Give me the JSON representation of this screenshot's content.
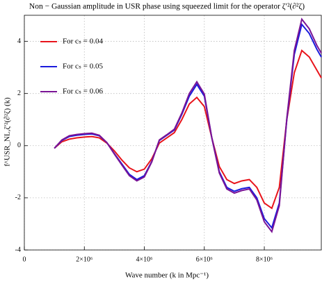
{
  "chart_data": {
    "type": "line",
    "title": "Non − Gaussian amplitude in USR phase using squeezed limit for the operator ζ′²(∂²ζ)",
    "xlabel": "Wave number (k in Mpc⁻¹)",
    "ylabel": "f^USR_NL,ζ′²(∂²ζ) (k)",
    "x": [
      1000000,
      1250000,
      1500000,
      1750000,
      2000000,
      2250000,
      2500000,
      2750000,
      3000000,
      3250000,
      3500000,
      3750000,
      4000000,
      4250000,
      4500000,
      4750000,
      5000000,
      5250000,
      5500000,
      5750000,
      6000000,
      6250000,
      6500000,
      6750000,
      7000000,
      7250000,
      7500000,
      7750000,
      8000000,
      8250000,
      8500000,
      8750000,
      9000000,
      9250000,
      9500000,
      9750000,
      9900000
    ],
    "series": [
      {
        "name": "For cₛ = 0.04",
        "color": "#e8141b",
        "values": [
          -0.1,
          0.15,
          0.25,
          0.3,
          0.33,
          0.35,
          0.3,
          0.1,
          -0.2,
          -0.55,
          -0.85,
          -1.0,
          -0.9,
          -0.5,
          0.1,
          0.3,
          0.5,
          1.0,
          1.6,
          1.85,
          1.5,
          0.3,
          -0.8,
          -1.3,
          -1.45,
          -1.35,
          -1.3,
          -1.6,
          -2.2,
          -2.4,
          -1.6,
          1.0,
          2.8,
          3.65,
          3.4,
          2.9,
          2.6
        ]
      },
      {
        "name": "For cₛ = 0.05",
        "color": "#1a1adc",
        "values": [
          -0.1,
          0.2,
          0.35,
          0.4,
          0.43,
          0.45,
          0.38,
          0.12,
          -0.3,
          -0.7,
          -1.1,
          -1.3,
          -1.15,
          -0.6,
          0.2,
          0.4,
          0.6,
          1.2,
          1.9,
          2.35,
          1.9,
          0.3,
          -1.0,
          -1.6,
          -1.75,
          -1.65,
          -1.6,
          -2.0,
          -2.8,
          -3.15,
          -2.2,
          1.0,
          3.5,
          4.65,
          4.3,
          3.7,
          3.4
        ]
      },
      {
        "name": "For cₛ = 0.06",
        "color": "#7a1496",
        "values": [
          -0.1,
          0.22,
          0.38,
          0.43,
          0.46,
          0.48,
          0.4,
          0.12,
          -0.32,
          -0.74,
          -1.15,
          -1.35,
          -1.2,
          -0.62,
          0.22,
          0.42,
          0.63,
          1.25,
          2.0,
          2.45,
          1.98,
          0.3,
          -1.05,
          -1.66,
          -1.82,
          -1.72,
          -1.66,
          -2.08,
          -2.92,
          -3.3,
          -2.3,
          1.05,
          3.65,
          4.85,
          4.48,
          3.85,
          3.55
        ]
      }
    ],
    "xlim": [
      0,
      9900000
    ],
    "xticks": [
      0,
      {
        "value": 2000000,
        "label": "2×10⁶"
      },
      {
        "value": 4000000,
        "label": "4×10⁶"
      },
      {
        "value": 6000000,
        "label": "6×10⁶"
      },
      {
        "value": 8000000,
        "label": "8×10⁶"
      }
    ],
    "ylim": [
      -4,
      5
    ],
    "yticks": [
      -4,
      -2,
      0,
      2,
      4
    ],
    "grid": true,
    "legend": "upper left"
  }
}
